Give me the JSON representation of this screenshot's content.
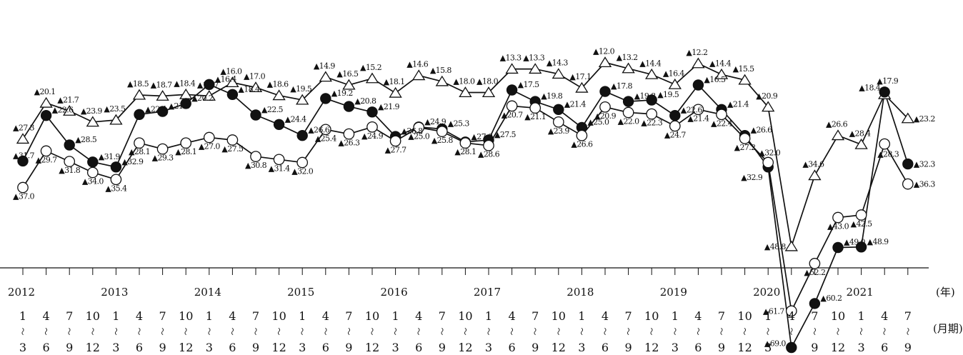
{
  "chart_data": {
    "type": "line",
    "title": "",
    "xlabel": "",
    "ylabel": "",
    "ylim": [
      -70,
      -12
    ],
    "x_unit_label": "(年)",
    "x_unit_label2": "(月期)",
    "years": [
      {
        "label": "2012",
        "start_index": 0
      },
      {
        "label": "2013",
        "start_index": 4
      },
      {
        "label": "2014",
        "start_index": 8
      },
      {
        "label": "2015",
        "start_index": 12
      },
      {
        "label": "2016",
        "start_index": 16
      },
      {
        "label": "2017",
        "start_index": 20
      },
      {
        "label": "2018",
        "start_index": 24
      },
      {
        "label": "2019",
        "start_index": 28
      },
      {
        "label": "2020",
        "start_index": 32
      },
      {
        "label": "2021",
        "start_index": 36
      }
    ],
    "period_start": [
      "1",
      "4",
      "7",
      "10",
      "1",
      "4",
      "7",
      "10",
      "1",
      "4",
      "7",
      "10",
      "1",
      "4",
      "7",
      "10",
      "1",
      "4",
      "7",
      "10",
      "1",
      "4",
      "7",
      "10",
      "1",
      "4",
      "7",
      "10",
      "1",
      "4",
      "7",
      "10",
      "1",
      "4",
      "7",
      "10",
      "1",
      "4",
      "7"
    ],
    "period_tilde": "〜",
    "period_end": [
      "3",
      "6",
      "9",
      "12",
      "3",
      "6",
      "9",
      "12",
      "3",
      "6",
      "9",
      "12",
      "3",
      "6",
      "9",
      "12",
      "3",
      "6",
      "9",
      "12",
      "3",
      "6",
      "9",
      "12",
      "3",
      "6",
      "9",
      "12",
      "3",
      "6",
      "9",
      "12",
      "3",
      "6",
      "9",
      "12",
      "3",
      "6",
      "9"
    ],
    "series": [
      {
        "marker": "triangle-open",
        "labels": [
          "▲27.3",
          "▲20.1",
          "▲21.7",
          "▲23.9",
          "▲23.5",
          "▲18.5",
          "▲18.7",
          "▲18.4",
          "▲18.7",
          "▲16.0",
          "▲17.0",
          "▲18.6",
          "▲19.5",
          "▲14.9",
          "▲16.5",
          "▲15.2",
          "▲18.1",
          "▲14.6",
          "▲15.8",
          "▲18.0",
          "▲18.0",
          "▲13.3",
          "▲13.3",
          "▲14.3",
          "▲17.1",
          "▲12.0",
          "▲13.2",
          "▲14.4",
          "▲16.4",
          "▲12.2",
          "▲14.4",
          "▲15.5",
          "▲20.9",
          "▲48.8",
          "▲34.6",
          "▲26.6",
          "▲28.4",
          "▲18.4",
          "▲23.2"
        ],
        "values": [
          -27.3,
          -20.1,
          -21.7,
          -23.9,
          -23.5,
          -18.5,
          -18.7,
          -18.4,
          -18.7,
          -16.0,
          -17.0,
          -18.6,
          -19.5,
          -14.9,
          -16.5,
          -15.2,
          -18.1,
          -14.6,
          -15.8,
          -18.0,
          -18.0,
          -13.3,
          -13.3,
          -14.3,
          -17.1,
          -12.0,
          -13.2,
          -14.4,
          -16.4,
          -12.2,
          -14.4,
          -15.5,
          -20.9,
          -48.8,
          -34.6,
          -26.6,
          -28.4,
          -18.4,
          -23.2
        ]
      },
      {
        "marker": "circle-filled",
        "labels": [
          "▲31.7",
          "▲22.6",
          "▲28.5",
          "▲31.9",
          "▲32.9",
          "▲22.4",
          "▲21.8",
          "▲20.2",
          "▲16.4",
          "▲18.4",
          "▲22.5",
          "▲24.4",
          "▲26.6",
          "▲19.2",
          "▲20.8",
          "▲21.9",
          "▲26.8",
          "▲24.9",
          "▲25.3",
          "▲27.9",
          "▲27.5",
          "▲17.5",
          "▲19.8",
          "▲21.4",
          "▲25.0",
          "▲17.8",
          "▲19.8",
          "▲19.5",
          "▲22.6",
          "▲16.5",
          "▲21.4",
          "▲26.6",
          "▲32.9",
          "▲69.0",
          "▲60.2",
          "▲49.0",
          "▲48.9",
          "▲17.9",
          "▲32.3"
        ],
        "values": [
          -31.7,
          -22.6,
          -28.5,
          -31.9,
          -32.9,
          -22.4,
          -21.8,
          -20.2,
          -16.4,
          -18.4,
          -22.5,
          -24.4,
          -26.6,
          -19.2,
          -20.8,
          -21.9,
          -26.8,
          -24.9,
          -25.3,
          -27.9,
          -27.5,
          -17.5,
          -19.8,
          -21.4,
          -25.0,
          -17.8,
          -19.8,
          -19.5,
          -22.6,
          -16.5,
          -21.4,
          -26.6,
          -32.9,
          -69.0,
          -60.2,
          -49.0,
          -48.9,
          -17.9,
          -32.3
        ]
      },
      {
        "marker": "circle-open",
        "labels": [
          "▲37.0",
          "▲29.7",
          "▲31.8",
          "▲34.0",
          "▲35.4",
          "▲28.1",
          "▲29.3",
          "▲28.1",
          "▲27.0",
          "▲27.5",
          "▲30.8",
          "▲31.4",
          "▲32.0",
          "▲25.4",
          "▲26.3",
          "▲24.9",
          "▲27.7",
          "▲25.0",
          "▲25.8",
          "▲28.1",
          "▲28.6",
          "▲20.7",
          "▲21.1",
          "▲23.9",
          "▲26.6",
          "▲20.9",
          "▲22.0",
          "▲22.3",
          "▲24.7",
          "▲21.4",
          "▲22.4",
          "▲27.2",
          "▲32.0",
          "▲61.7",
          "▲52.2",
          "▲43.0",
          "▲42.5",
          "▲28.3",
          "▲36.3"
        ],
        "values": [
          -37.0,
          -29.7,
          -31.8,
          -34.0,
          -35.4,
          -28.1,
          -29.3,
          -28.1,
          -27.0,
          -27.5,
          -30.8,
          -31.4,
          -32.0,
          -25.4,
          -26.3,
          -24.9,
          -27.7,
          -25.0,
          -25.8,
          -28.1,
          -28.6,
          -20.7,
          -21.1,
          -23.9,
          -26.6,
          -20.9,
          -22.0,
          -22.3,
          -24.7,
          -21.4,
          -22.4,
          -27.2,
          -32.0,
          -61.7,
          -52.2,
          -43.0,
          -42.5,
          -28.3,
          -36.3
        ]
      }
    ]
  }
}
